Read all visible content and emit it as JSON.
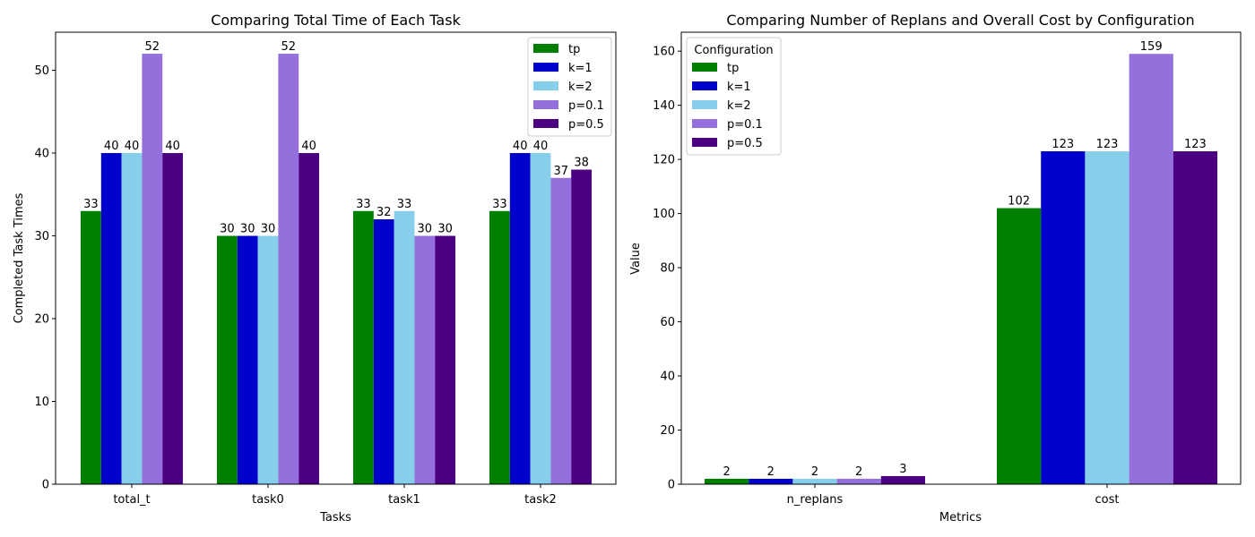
{
  "chart_data": [
    {
      "type": "bar",
      "title": "Comparing Total Time of Each Task",
      "xlabel": "Tasks",
      "ylabel": "Completed Task Times",
      "categories": [
        "total_t",
        "task0",
        "task1",
        "task2"
      ],
      "ylim": [
        0,
        54.6
      ],
      "yticks": [
        0,
        10,
        20,
        30,
        40,
        50
      ],
      "grid": false,
      "legend_position": "top-right",
      "legend_title": "",
      "series": [
        {
          "name": "tp",
          "color": "#008000",
          "values": [
            33,
            30,
            33,
            33
          ]
        },
        {
          "name": "k=1",
          "color": "#0000CD",
          "values": [
            40,
            30,
            32,
            40
          ]
        },
        {
          "name": "k=2",
          "color": "#87CEEB",
          "values": [
            40,
            30,
            33,
            40
          ]
        },
        {
          "name": "p=0.1",
          "color": "#9370DB",
          "values": [
            52,
            52,
            30,
            37
          ]
        },
        {
          "name": "p=0.5",
          "color": "#4B0082",
          "values": [
            40,
            40,
            30,
            38
          ]
        }
      ]
    },
    {
      "type": "bar",
      "title": "Comparing Number of Replans and Overall Cost by Configuration",
      "xlabel": "Metrics",
      "ylabel": "Value",
      "categories": [
        "n_replans",
        "cost"
      ],
      "ylim": [
        0,
        167
      ],
      "yticks": [
        0,
        20,
        40,
        60,
        80,
        100,
        120,
        140,
        160
      ],
      "grid": false,
      "legend_position": "top-left",
      "legend_title": "Configuration",
      "series": [
        {
          "name": "tp",
          "color": "#008000",
          "values": [
            2,
            102
          ]
        },
        {
          "name": "k=1",
          "color": "#0000CD",
          "values": [
            2,
            123
          ]
        },
        {
          "name": "k=2",
          "color": "#87CEEB",
          "values": [
            2,
            123
          ]
        },
        {
          "name": "p=0.1",
          "color": "#9370DB",
          "values": [
            2,
            159
          ]
        },
        {
          "name": "p=0.5",
          "color": "#4B0082",
          "values": [
            3,
            123
          ]
        }
      ]
    }
  ]
}
